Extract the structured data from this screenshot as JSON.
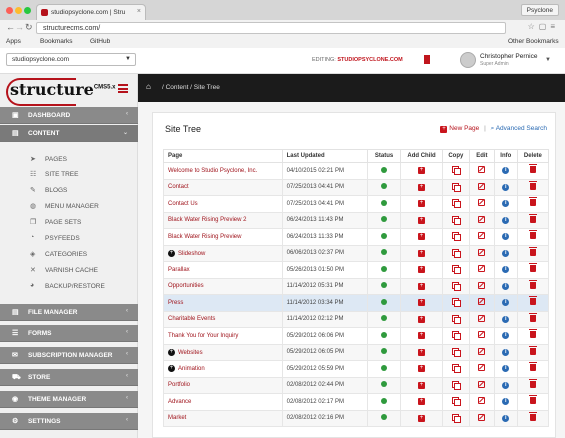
{
  "browser": {
    "tab_title": "studiopsyclone.com | Stru",
    "profile": "Psyclone",
    "url": "structurecms.com/",
    "bookmarks": [
      "Apps",
      "Bookmarks",
      "GitHub"
    ],
    "other_bookmarks": "Other Bookmarks"
  },
  "topbar": {
    "site_select": "studiopsyclone.com",
    "editing_label": "EDITING:",
    "editing_site": "STUDIOPSYCLONE.COM",
    "user_name": "Christopher Pernice",
    "user_role": "Super Admin"
  },
  "sidebar": {
    "logo_text": "structure",
    "logo_suffix": "CMS5.x",
    "menu": [
      {
        "label": "DASHBOARD",
        "icon": "dashboard-icon"
      },
      {
        "label": "CONTENT",
        "icon": "folder-icon"
      },
      {
        "label": "FILE MANAGER",
        "icon": "folder-icon"
      },
      {
        "label": "FORMS",
        "icon": "list-icon"
      },
      {
        "label": "SUBSCRIPTION MANAGER",
        "icon": "mail-icon"
      },
      {
        "label": "STORE",
        "icon": "cart-icon"
      },
      {
        "label": "THEME MANAGER",
        "icon": "eye-icon"
      },
      {
        "label": "SETTINGS",
        "icon": "gear-icon"
      }
    ],
    "content_items": [
      "PAGES",
      "SITE TREE",
      "BLOGS",
      "MENU MANAGER",
      "PAGE SETS",
      "PSYFEEDS",
      "CATEGORIES",
      "VARNISH CACHE",
      "BACKUP/RESTORE"
    ]
  },
  "breadcrumb": {
    "path": "/  Content  /  Site Tree"
  },
  "panel": {
    "title": "Site Tree",
    "new_page": "New Page",
    "separator": "|",
    "advanced_search": "Advanced Search"
  },
  "table": {
    "headers": [
      "Page",
      "Last Updated",
      "Status",
      "Add Child",
      "Copy",
      "Edit",
      "Info",
      "Delete"
    ],
    "rows": [
      {
        "page": "Welcome to Studio Psyclone, Inc.",
        "updated": "04/10/2015 02:21 PM",
        "has_children": false
      },
      {
        "page": "Contact",
        "updated": "07/25/2013 04:41 PM",
        "has_children": false
      },
      {
        "page": "Contact Us",
        "updated": "07/25/2013 04:41 PM",
        "has_children": false
      },
      {
        "page": "Black Water Rising Preview 2",
        "updated": "06/24/2013 11:43 PM",
        "has_children": false
      },
      {
        "page": "Black Water Rising Preview",
        "updated": "06/24/2013 11:33 PM",
        "has_children": false
      },
      {
        "page": "Slideshow",
        "updated": "06/06/2013 02:37 PM",
        "has_children": true
      },
      {
        "page": "Parallax",
        "updated": "05/26/2013 01:50 PM",
        "has_children": false
      },
      {
        "page": "Opportunities",
        "updated": "11/14/2012 05:31 PM",
        "has_children": false
      },
      {
        "page": "Press",
        "updated": "11/14/2012 03:34 PM",
        "has_children": false
      },
      {
        "page": "Charitable Events",
        "updated": "11/14/2012 02:12 PM",
        "has_children": false
      },
      {
        "page": "Thank You for Your Inquiry",
        "updated": "05/29/2012 06:06 PM",
        "has_children": false
      },
      {
        "page": "Websites",
        "updated": "05/29/2012 06:05 PM",
        "has_children": true
      },
      {
        "page": "Animation",
        "updated": "05/29/2012 05:59 PM",
        "has_children": true
      },
      {
        "page": "Portfolio",
        "updated": "02/08/2012 02:44 PM",
        "has_children": false
      },
      {
        "page": "Advance",
        "updated": "02/08/2012 02:17 PM",
        "has_children": false
      },
      {
        "page": "Market",
        "updated": "02/08/2012 02:16 PM",
        "has_children": false
      }
    ]
  },
  "colors": {
    "accent": "#b5121b",
    "status_green": "#2f9a3d",
    "info_blue": "#2a6ab3",
    "sidebar_menu": "#8a8a8a"
  }
}
